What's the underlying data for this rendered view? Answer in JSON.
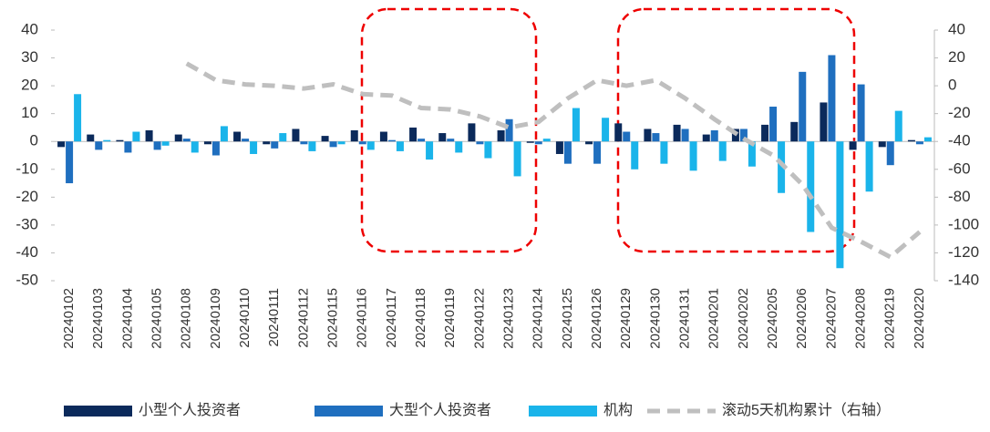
{
  "chart_data": {
    "type": "bar-line",
    "categories": [
      "20240102",
      "20240103",
      "20240104",
      "20240105",
      "20240108",
      "20240109",
      "20240110",
      "20240111",
      "20240112",
      "20240115",
      "20240116",
      "20240117",
      "20240118",
      "20240119",
      "20240122",
      "20240123",
      "20240124",
      "20240125",
      "20240126",
      "20240129",
      "20240130",
      "20240131",
      "20240201",
      "20240202",
      "20240205",
      "20240206",
      "20240207",
      "20240208",
      "20240219",
      "20240220"
    ],
    "series": [
      {
        "name": "小型个人投资者",
        "color": "#0b2a5b",
        "type": "bar",
        "values": [
          -2,
          2.5,
          0.5,
          4,
          2.5,
          -1,
          3.5,
          -1,
          4.5,
          2,
          4,
          3.5,
          5,
          3,
          6.5,
          4,
          -0.5,
          -4.5,
          -1,
          6.5,
          4.5,
          6,
          2.5,
          4.5,
          6,
          7,
          14,
          -3,
          -2,
          0.5
        ]
      },
      {
        "name": "大型个人投资者",
        "color": "#1f6fbf",
        "type": "bar",
        "values": [
          -15,
          -3,
          -4,
          -3,
          1,
          -5,
          1,
          -2.5,
          -1,
          -2,
          -1,
          0.5,
          1,
          1,
          -1,
          8,
          -1,
          -8,
          -8,
          3.5,
          3,
          4.5,
          4,
          4.5,
          12.5,
          25,
          31,
          20.5,
          -8.5,
          -1
        ]
      },
      {
        "name": "机构",
        "color": "#1ab4ea",
        "type": "bar",
        "values": [
          17,
          0.5,
          3.5,
          -1.5,
          -4,
          5.5,
          -4.5,
          3,
          -3.5,
          -1,
          -3,
          -3.5,
          -6.5,
          -4,
          -6,
          -12.5,
          1,
          12,
          8.5,
          -10,
          -8,
          -10.5,
          -7,
          -9,
          -18.5,
          -32.5,
          -45.5,
          -18,
          11,
          1.5
        ]
      },
      {
        "name": "滚动5天机构累计（右轴）",
        "color": "#bfbfbf",
        "type": "line",
        "axis": "y2",
        "values": [
          null,
          null,
          null,
          null,
          16,
          4,
          1,
          0,
          -2,
          1,
          -6,
          -7,
          -16,
          -17,
          -22,
          -30,
          -26,
          -9,
          4,
          0,
          4,
          -9,
          -24,
          -38,
          -50,
          -71,
          -102,
          -112,
          -123,
          -105
        ]
      }
    ],
    "ylim": [
      -50,
      40
    ],
    "yticks": [
      40,
      30,
      20,
      10,
      0,
      -10,
      -20,
      -30,
      -40,
      -50
    ],
    "y2lim": [
      -140,
      40
    ],
    "y2ticks": [
      40,
      20,
      0,
      -20,
      -40,
      -60,
      -80,
      -100,
      -120,
      -140
    ]
  }
}
